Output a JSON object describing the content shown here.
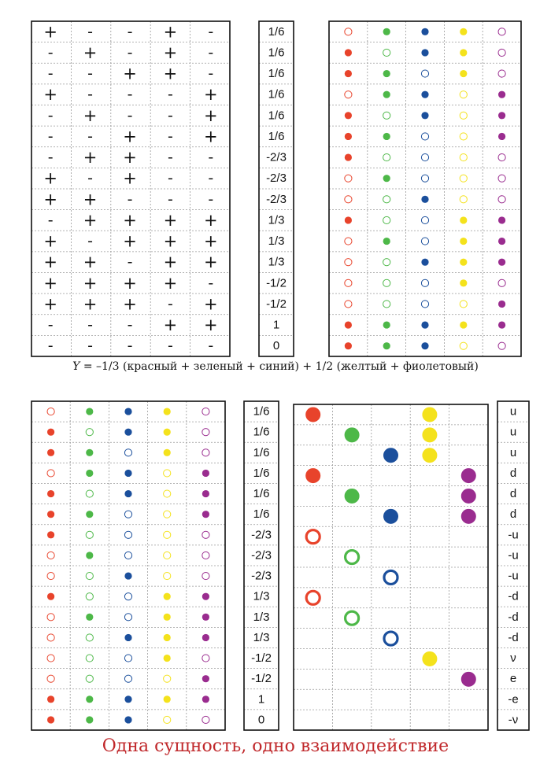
{
  "colors": {
    "red": "#e8432b",
    "green": "#4db848",
    "blue": "#1b4f9c",
    "yellow": "#f4e21c",
    "violet": "#9a2c8f",
    "caption": "#c0282b"
  },
  "table_a_signs": [
    [
      "+",
      "-",
      "-",
      "+",
      "-"
    ],
    [
      "-",
      "+",
      "-",
      "+",
      "-"
    ],
    [
      "-",
      "-",
      "+",
      "+",
      "-"
    ],
    [
      "+",
      "-",
      "-",
      "-",
      "+"
    ],
    [
      "-",
      "+",
      "-",
      "-",
      "+"
    ],
    [
      "-",
      "-",
      "+",
      "-",
      "+"
    ],
    [
      "-",
      "+",
      "+",
      "-",
      "-"
    ],
    [
      "+",
      "-",
      "+",
      "-",
      "-"
    ],
    [
      "+",
      "+",
      "-",
      "-",
      "-"
    ],
    [
      "-",
      "+",
      "+",
      "+",
      "+"
    ],
    [
      "+",
      "-",
      "+",
      "+",
      "+"
    ],
    [
      "+",
      "+",
      "-",
      "+",
      "+"
    ],
    [
      "+",
      "+",
      "+",
      "+",
      "-"
    ],
    [
      "+",
      "+",
      "+",
      "-",
      "+"
    ],
    [
      "-",
      "-",
      "-",
      "+",
      "+"
    ],
    [
      "-",
      "-",
      "-",
      "-",
      "-"
    ]
  ],
  "hypercharge_values": [
    "1/6",
    "1/6",
    "1/6",
    "1/6",
    "1/6",
    "1/6",
    "-2/3",
    "-2/3",
    "-2/3",
    "1/3",
    "1/3",
    "1/3",
    "-1/2",
    "-1/2",
    "1",
    "0"
  ],
  "particle_labels": [
    "u",
    "u",
    "u",
    "d",
    "d",
    "d",
    "-u",
    "-u",
    "-u",
    "-d",
    "-d",
    "-d",
    "ν",
    "e",
    "-e",
    "-ν"
  ],
  "formula": {
    "variable": "Y",
    "text": " = –1/3 (красный + зеленый + синий) + 1/2 (желтый + фиолетовый)"
  },
  "caption": "Одна сущность, одно взаимодействие",
  "large_dot_rows": [
    [
      1,
      0,
      0,
      1,
      0
    ],
    [
      0,
      1,
      0,
      1,
      0
    ],
    [
      0,
      0,
      1,
      1,
      0
    ],
    [
      1,
      0,
      0,
      0,
      1
    ],
    [
      0,
      1,
      0,
      0,
      1
    ],
    [
      0,
      0,
      1,
      0,
      1
    ],
    [
      -1,
      0,
      0,
      0,
      0
    ],
    [
      0,
      -1,
      0,
      0,
      0
    ],
    [
      0,
      0,
      -1,
      0,
      0
    ],
    [
      -1,
      0,
      0,
      0,
      0
    ],
    [
      0,
      -1,
      0,
      0,
      0
    ],
    [
      0,
      0,
      -1,
      0,
      0
    ],
    [
      0,
      0,
      0,
      1,
      0
    ],
    [
      0,
      0,
      0,
      0,
      1
    ],
    [
      0,
      0,
      0,
      0,
      0
    ],
    [
      0,
      0,
      0,
      0,
      0
    ]
  ]
}
